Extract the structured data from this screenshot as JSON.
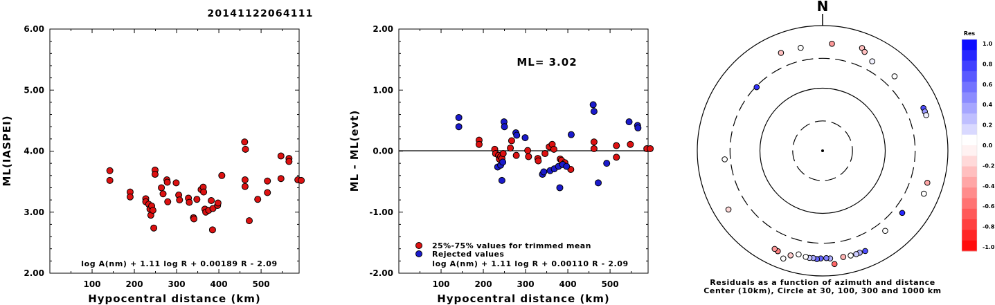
{
  "title": "20141122064111",
  "colors": {
    "red": "#dd1111",
    "blue": "#1a1acc",
    "black": "#000000"
  },
  "chart_data": [
    {
      "type": "scatter",
      "name": "ML(IASPEI) vs distance",
      "xlabel": "Hypocentral distance (km)",
      "ylabel": "ML(IASPEI)",
      "xlim": [
        0,
        590
      ],
      "ylim": [
        2.0,
        6.0
      ],
      "xticks": [
        100,
        200,
        300,
        400,
        500
      ],
      "xtick_labels": [
        "100",
        "200",
        "300",
        "400",
        "500"
      ],
      "yticks": [
        2.0,
        3.0,
        4.0,
        5.0,
        6.0
      ],
      "ytick_labels": [
        "2.00",
        "3.00",
        "4.00",
        "5.00",
        "6.00"
      ],
      "formula": "log A(nm) + 1.11 log R + 0.00189 R - 2.09",
      "points": [
        [
          142,
          3.68
        ],
        [
          142,
          3.52
        ],
        [
          190,
          3.33
        ],
        [
          190,
          3.25
        ],
        [
          227,
          3.22
        ],
        [
          227,
          3.17
        ],
        [
          234,
          3.13
        ],
        [
          237,
          3.05
        ],
        [
          239,
          2.95
        ],
        [
          241,
          3.1
        ],
        [
          244,
          3.03
        ],
        [
          246,
          2.74
        ],
        [
          249,
          3.69
        ],
        [
          249,
          3.62
        ],
        [
          264,
          3.4
        ],
        [
          268,
          3.3
        ],
        [
          277,
          3.53
        ],
        [
          278,
          3.49
        ],
        [
          279,
          3.17
        ],
        [
          299,
          3.48
        ],
        [
          305,
          3.28
        ],
        [
          307,
          3.2
        ],
        [
          328,
          3.23
        ],
        [
          330,
          3.16
        ],
        [
          340,
          2.91
        ],
        [
          341,
          2.89
        ],
        [
          348,
          3.21
        ],
        [
          358,
          3.37
        ],
        [
          363,
          3.41
        ],
        [
          364,
          3.33
        ],
        [
          367,
          3.05
        ],
        [
          369,
          3.0
        ],
        [
          376,
          3.03
        ],
        [
          382,
          3.19
        ],
        [
          385,
          2.71
        ],
        [
          386,
          3.06
        ],
        [
          397,
          3.11
        ],
        [
          398,
          3.15
        ],
        [
          407,
          3.6
        ],
        [
          461,
          4.15
        ],
        [
          462,
          3.53
        ],
        [
          462,
          3.42
        ],
        [
          463,
          4.03
        ],
        [
          472,
          2.86
        ],
        [
          492,
          3.21
        ],
        [
          515,
          3.51
        ],
        [
          515,
          3.32
        ],
        [
          547,
          3.55
        ],
        [
          547,
          3.92
        ],
        [
          566,
          3.88
        ],
        [
          566,
          3.83
        ],
        [
          587,
          3.53
        ],
        [
          595,
          3.52
        ]
      ]
    },
    {
      "type": "scatter",
      "name": "ML - ML(evt) vs distance",
      "xlabel": "Hypocentral distance (km)",
      "ylabel": "ML - ML(evt)",
      "xlim": [
        0,
        590
      ],
      "ylim": [
        -2.0,
        2.0
      ],
      "xticks": [
        100,
        200,
        300,
        400,
        500
      ],
      "xtick_labels": [
        "100",
        "200",
        "300",
        "400",
        "500"
      ],
      "yticks": [
        -2.0,
        -1.0,
        0.0,
        1.0,
        2.0
      ],
      "ytick_labels": [
        "-2.00",
        "-1.00",
        "0.00",
        "1.00",
        "2.00"
      ],
      "annotation": "ML= 3.02",
      "legend": [
        "25%-75% values for trimmed mean",
        "Rejected values"
      ],
      "formula": "log A(nm) + 1.11 log R + 0.00110 R - 2.09",
      "points_trimmed": [
        [
          190,
          0.18
        ],
        [
          190,
          0.11
        ],
        [
          227,
          0.03
        ],
        [
          229,
          -0.04
        ],
        [
          236,
          -0.07
        ],
        [
          238,
          -0.13
        ],
        [
          241,
          -0.09
        ],
        [
          244,
          -0.12
        ],
        [
          247,
          -0.04
        ],
        [
          264,
          0.05
        ],
        [
          267,
          0.17
        ],
        [
          278,
          -0.07
        ],
        [
          305,
          0.01
        ],
        [
          307,
          -0.09
        ],
        [
          329,
          -0.12
        ],
        [
          330,
          -0.16
        ],
        [
          346,
          -0.04
        ],
        [
          356,
          0.07
        ],
        [
          363,
          0.11
        ],
        [
          367,
          0.03
        ],
        [
          382,
          -0.13
        ],
        [
          385,
          -0.15
        ],
        [
          393,
          -0.19
        ],
        [
          407,
          -0.3
        ],
        [
          462,
          0.15
        ],
        [
          462,
          0.04
        ],
        [
          515,
          0.09
        ],
        [
          515,
          -0.1
        ],
        [
          548,
          0.11
        ],
        [
          587,
          0.04
        ],
        [
          595,
          0.04
        ]
      ],
      "points_rejected": [
        [
          142,
          0.55
        ],
        [
          142,
          0.4
        ],
        [
          234,
          -0.26
        ],
        [
          241,
          -0.23
        ],
        [
          244,
          -0.48
        ],
        [
          246,
          -0.18
        ],
        [
          249,
          0.48
        ],
        [
          250,
          0.4
        ],
        [
          277,
          0.3
        ],
        [
          279,
          0.26
        ],
        [
          299,
          0.22
        ],
        [
          340,
          -0.38
        ],
        [
          343,
          -0.34
        ],
        [
          358,
          -0.32
        ],
        [
          368,
          -0.29
        ],
        [
          378,
          -0.25
        ],
        [
          381,
          -0.6
        ],
        [
          388,
          -0.22
        ],
        [
          397,
          -0.25
        ],
        [
          408,
          0.27
        ],
        [
          460,
          0.76
        ],
        [
          462,
          0.65
        ],
        [
          472,
          -0.52
        ],
        [
          492,
          -0.2
        ],
        [
          545,
          0.48
        ],
        [
          565,
          0.42
        ],
        [
          566,
          0.38
        ]
      ]
    },
    {
      "type": "scatter",
      "name": "azimuthal residuals",
      "north_label": "N",
      "caption_lines": [
        "Residuals as a function of azimuth and distance",
        "Center (10km), Circle at 30, 100, 300 and 1000 km"
      ],
      "colorbar_title": "Res",
      "colorbar_ticks": [
        "1.0",
        "0.8",
        "0.6",
        "0.4",
        "0.2",
        "0.0",
        "-0.2",
        "-0.4",
        "-0.6",
        "-0.8",
        "-1.0"
      ],
      "stations": [
        {
          "az": 5,
          "dist": 520,
          "res": -0.4
        },
        {
          "az": 21,
          "dist": 573,
          "res": -0.25
        },
        {
          "az": 23,
          "dist": 520,
          "res": -0.25
        },
        {
          "az": 348,
          "dist": 480,
          "res": 0.0
        },
        {
          "az": 337,
          "dist": 500,
          "res": -0.25
        },
        {
          "az": 29,
          "dist": 430,
          "res": 0.05
        },
        {
          "az": 314,
          "dist": 290,
          "res": 0.8
        },
        {
          "az": 44,
          "dist": 450,
          "res": 0.0
        },
        {
          "az": 67,
          "dist": 560,
          "res": 0.7
        },
        {
          "az": 69,
          "dist": 560,
          "res": 0.4
        },
        {
          "az": 71,
          "dist": 560,
          "res": 0.05
        },
        {
          "az": 107,
          "dist": 560,
          "res": -0.35
        },
        {
          "az": 113,
          "dist": 570,
          "res": 0.0
        },
        {
          "az": 128,
          "dist": 410,
          "res": 0.85
        },
        {
          "az": 142,
          "dist": 420,
          "res": 0.0
        },
        {
          "az": 157,
          "dist": 550,
          "res": 0.7
        },
        {
          "az": 160,
          "dist": 540,
          "res": 0.3
        },
        {
          "az": 162,
          "dist": 545,
          "res": 0.2
        },
        {
          "az": 165,
          "dist": 540,
          "res": 0.0
        },
        {
          "az": 169,
          "dist": 535,
          "res": -0.3
        },
        {
          "az": 174,
          "dist": 660,
          "res": -0.6
        },
        {
          "az": 176,
          "dist": 530,
          "res": 0.3
        },
        {
          "az": 178,
          "dist": 520,
          "res": 0.5
        },
        {
          "az": 181,
          "dist": 525,
          "res": 0.6
        },
        {
          "az": 183,
          "dist": 540,
          "res": 0.6
        },
        {
          "az": 185,
          "dist": 525,
          "res": 0.35
        },
        {
          "az": 187,
          "dist": 530,
          "res": 0.2
        },
        {
          "az": 189,
          "dist": 520,
          "res": 0.0
        },
        {
          "az": 193,
          "dist": 500,
          "res": 0.0
        },
        {
          "az": 197,
          "dist": 560,
          "res": -0.2
        },
        {
          "az": 200,
          "dist": 680,
          "res": 0.0
        },
        {
          "az": 204,
          "dist": 570,
          "res": -0.5
        },
        {
          "az": 206,
          "dist": 555,
          "res": -0.4
        },
        {
          "az": 238,
          "dist": 590,
          "res": -0.15
        },
        {
          "az": 265,
          "dist": 370,
          "res": 0.0
        }
      ]
    }
  ]
}
